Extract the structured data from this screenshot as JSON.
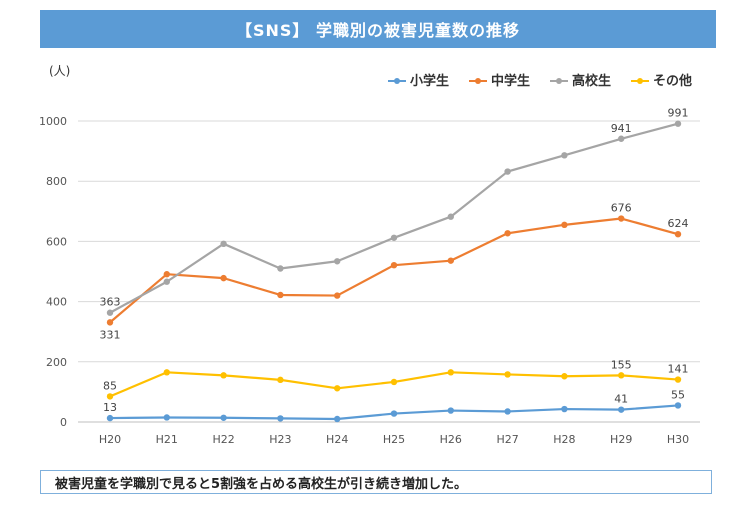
{
  "header": {
    "title": "【SNS】 学職別の被害児童数の推移"
  },
  "footer": {
    "text": "被害児童を学職別で見ると5割強を占める高校生が引き続き増加した。"
  },
  "chart_data": {
    "type": "line",
    "title": "【SNS】 学職別の被害児童数の推移",
    "ylabel": "(人)",
    "xlabel": "",
    "ylim": [
      0,
      1000
    ],
    "yticks": [
      0,
      200,
      400,
      600,
      800,
      1000
    ],
    "grid": true,
    "legend_position": "top-right",
    "categories": [
      "H20",
      "H21",
      "H22",
      "H23",
      "H24",
      "H25",
      "H26",
      "H27",
      "H28",
      "H29",
      "H30"
    ],
    "series": [
      {
        "name": "小学生",
        "color": "#5b9bd5",
        "values": [
          13,
          15,
          14,
          12,
          10,
          28,
          38,
          35,
          43,
          41,
          55
        ],
        "labels": [
          {
            "index": 0,
            "text": "13",
            "pos": "above"
          },
          {
            "index": 9,
            "text": "41",
            "pos": "above"
          },
          {
            "index": 10,
            "text": "55",
            "pos": "above"
          }
        ]
      },
      {
        "name": "中学生",
        "color": "#ed7d31",
        "values": [
          331,
          491,
          478,
          422,
          420,
          521,
          536,
          627,
          655,
          676,
          624
        ],
        "labels": [
          {
            "index": 0,
            "text": "331",
            "pos": "below"
          },
          {
            "index": 9,
            "text": "676",
            "pos": "above"
          },
          {
            "index": 10,
            "text": "624",
            "pos": "above"
          }
        ]
      },
      {
        "name": "高校生",
        "color": "#a5a5a5",
        "values": [
          363,
          466,
          592,
          510,
          534,
          612,
          682,
          832,
          886,
          941,
          991
        ],
        "labels": [
          {
            "index": 0,
            "text": "363",
            "pos": "above"
          },
          {
            "index": 9,
            "text": "941",
            "pos": "above"
          },
          {
            "index": 10,
            "text": "991",
            "pos": "above"
          }
        ]
      },
      {
        "name": "その他",
        "color": "#ffc000",
        "values": [
          85,
          165,
          155,
          140,
          112,
          133,
          165,
          158,
          152,
          155,
          141
        ],
        "labels": [
          {
            "index": 0,
            "text": "85",
            "pos": "above"
          },
          {
            "index": 9,
            "text": "155",
            "pos": "above"
          },
          {
            "index": 10,
            "text": "141",
            "pos": "above"
          }
        ]
      }
    ]
  }
}
